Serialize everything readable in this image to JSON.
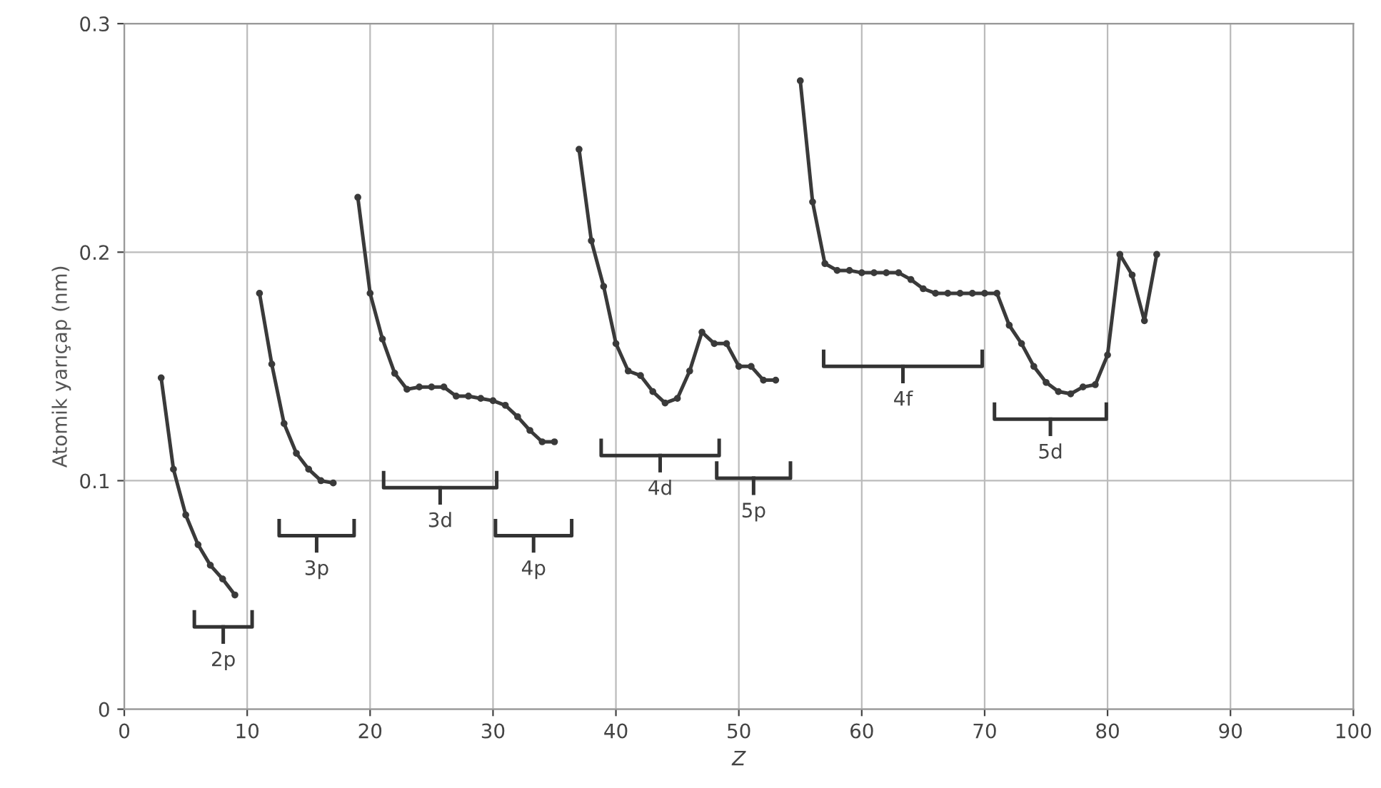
{
  "chart_data": {
    "type": "line",
    "xlabel": "Z",
    "ylabel": "Atomik yarıçap (nm)",
    "series": [
      {
        "color": "#3a3a3a",
        "x": [
          3,
          4,
          5,
          6,
          7,
          8,
          9,
          10,
          11,
          12,
          13,
          14,
          15,
          16,
          17,
          18,
          19,
          20,
          21,
          22,
          23,
          24,
          25,
          26,
          27,
          28,
          29,
          30,
          31,
          32,
          33,
          34,
          35,
          36,
          37,
          38,
          39,
          40,
          41,
          42,
          43,
          44,
          45,
          46,
          47,
          48,
          49,
          50,
          51,
          52,
          53,
          54,
          55,
          56,
          57,
          58,
          59,
          60,
          61,
          62,
          63,
          64,
          65,
          66,
          67,
          68,
          69,
          70,
          71,
          72,
          73,
          74,
          75,
          76,
          77,
          78,
          79,
          80,
          81,
          82,
          83,
          84
        ],
        "values": [
          0.145,
          0.105,
          0.085,
          0.072,
          0.063,
          0.057,
          0.05,
          null,
          0.182,
          0.151,
          0.125,
          0.112,
          0.105,
          0.1,
          0.099,
          null,
          0.224,
          0.182,
          0.162,
          0.147,
          0.14,
          0.141,
          0.141,
          0.141,
          0.137,
          0.137,
          0.136,
          0.135,
          0.133,
          0.128,
          0.122,
          0.117,
          0.117,
          null,
          0.245,
          0.205,
          0.185,
          0.16,
          0.148,
          0.146,
          0.139,
          0.134,
          0.136,
          0.148,
          0.165,
          0.16,
          0.16,
          0.15,
          0.15,
          0.144,
          0.144,
          null,
          0.275,
          0.222,
          0.195,
          0.192,
          0.192,
          0.191,
          0.191,
          0.191,
          0.191,
          0.188,
          0.184,
          0.182,
          0.182,
          0.182,
          0.182,
          0.182,
          0.182,
          0.168,
          0.16,
          0.15,
          0.143,
          0.139,
          0.138,
          0.141,
          0.142,
          0.155,
          0.199,
          0.19,
          0.17,
          0.199
        ]
      }
    ],
    "xlim": [
      0,
      100
    ],
    "xticks": [
      0,
      10,
      20,
      30,
      40,
      50,
      60,
      70,
      80,
      90,
      100
    ],
    "ylim": [
      0,
      0.3
    ],
    "yticks": [
      0,
      0.1,
      0.2,
      0.3
    ],
    "grid": true,
    "marker": "circle",
    "line_style": "solid",
    "annotations": [
      "2p",
      "3p",
      "3d",
      "4p",
      "4d",
      "5p",
      "4f",
      "5d"
    ]
  }
}
